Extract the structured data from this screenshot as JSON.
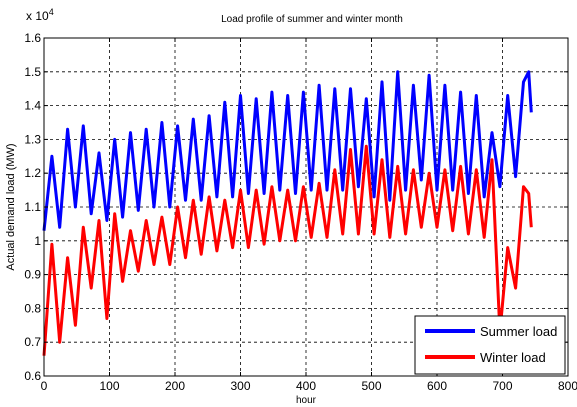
{
  "chart_data": {
    "type": "line",
    "title": "Load profile of summer and winter month",
    "xlabel": "hour",
    "ylabel": "Actual demand load (MW)",
    "y_exponent_label": "x 10",
    "y_exponent_power": "4",
    "xlim": [
      0,
      800
    ],
    "ylim": [
      0.6,
      1.6
    ],
    "x_ticks": [
      0,
      100,
      200,
      300,
      400,
      500,
      600,
      700,
      800
    ],
    "x_tick_labels": [
      "0",
      "100",
      "200",
      "300",
      "400",
      "500",
      "600",
      "700",
      "800"
    ],
    "y_ticks": [
      0.6,
      0.7,
      0.8,
      0.9,
      1.0,
      1.1,
      1.2,
      1.3,
      1.4,
      1.5,
      1.6
    ],
    "y_tick_labels": [
      "0.6",
      "0.7",
      "0.8",
      "0.9",
      "1",
      "1.1",
      "1.2",
      "1.3",
      "1.4",
      "1.5",
      "1.6"
    ],
    "grid": true,
    "legend_position": "bottom-right",
    "series": [
      {
        "name": "Summer load",
        "color": "#0000ff",
        "daily_trough": [
          [
            0,
            1.03
          ],
          [
            24,
            1.04
          ],
          [
            48,
            1.1
          ],
          [
            72,
            1.08
          ],
          [
            96,
            1.06
          ],
          [
            120,
            1.07
          ],
          [
            144,
            1.09
          ],
          [
            168,
            1.1
          ],
          [
            192,
            1.1
          ],
          [
            216,
            1.12
          ],
          [
            240,
            1.12
          ],
          [
            264,
            1.13
          ],
          [
            288,
            1.13
          ],
          [
            312,
            1.14
          ],
          [
            336,
            1.14
          ],
          [
            360,
            1.15
          ],
          [
            384,
            1.14
          ],
          [
            408,
            1.15
          ],
          [
            432,
            1.15
          ],
          [
            456,
            1.15
          ],
          [
            480,
            1.16
          ],
          [
            504,
            1.13
          ],
          [
            528,
            1.12
          ],
          [
            552,
            1.15
          ],
          [
            576,
            1.18
          ],
          [
            600,
            1.15
          ],
          [
            624,
            1.15
          ],
          [
            648,
            1.14
          ],
          [
            672,
            1.13
          ],
          [
            696,
            1.16
          ],
          [
            720,
            1.19
          ],
          [
            744,
            1.38
          ]
        ],
        "daily_peak": [
          [
            12,
            1.25
          ],
          [
            36,
            1.33
          ],
          [
            60,
            1.34
          ],
          [
            84,
            1.26
          ],
          [
            108,
            1.3
          ],
          [
            132,
            1.32
          ],
          [
            156,
            1.33
          ],
          [
            180,
            1.35
          ],
          [
            204,
            1.34
          ],
          [
            228,
            1.36
          ],
          [
            252,
            1.37
          ],
          [
            276,
            1.41
          ],
          [
            300,
            1.43
          ],
          [
            324,
            1.42
          ],
          [
            348,
            1.44
          ],
          [
            372,
            1.43
          ],
          [
            396,
            1.44
          ],
          [
            420,
            1.46
          ],
          [
            444,
            1.45
          ],
          [
            468,
            1.45
          ],
          [
            492,
            1.42
          ],
          [
            516,
            1.47
          ],
          [
            540,
            1.5
          ],
          [
            564,
            1.46
          ],
          [
            588,
            1.49
          ],
          [
            612,
            1.46
          ],
          [
            636,
            1.44
          ],
          [
            660,
            1.43
          ],
          [
            684,
            1.32
          ],
          [
            708,
            1.43
          ],
          [
            732,
            1.47
          ],
          [
            740,
            1.5
          ]
        ]
      },
      {
        "name": "Winter load",
        "color": "#ff0000",
        "daily_trough": [
          [
            0,
            0.66
          ],
          [
            24,
            0.7
          ],
          [
            48,
            0.75
          ],
          [
            72,
            0.86
          ],
          [
            96,
            0.77
          ],
          [
            120,
            0.88
          ],
          [
            144,
            0.91
          ],
          [
            168,
            0.93
          ],
          [
            192,
            0.93
          ],
          [
            216,
            0.95
          ],
          [
            240,
            0.96
          ],
          [
            264,
            0.97
          ],
          [
            288,
            0.98
          ],
          [
            312,
            0.98
          ],
          [
            336,
            0.99
          ],
          [
            360,
            1.0
          ],
          [
            384,
            1.0
          ],
          [
            408,
            1.01
          ],
          [
            432,
            1.01
          ],
          [
            456,
            1.02
          ],
          [
            480,
            1.02
          ],
          [
            504,
            1.02
          ],
          [
            528,
            1.01
          ],
          [
            552,
            1.02
          ],
          [
            576,
            1.04
          ],
          [
            600,
            1.04
          ],
          [
            624,
            1.03
          ],
          [
            648,
            1.02
          ],
          [
            672,
            1.01
          ],
          [
            696,
            0.73
          ],
          [
            720,
            0.86
          ],
          [
            744,
            1.04
          ]
        ],
        "daily_peak": [
          [
            12,
            0.99
          ],
          [
            36,
            0.95
          ],
          [
            60,
            1.04
          ],
          [
            84,
            1.06
          ],
          [
            108,
            1.08
          ],
          [
            132,
            1.03
          ],
          [
            156,
            1.06
          ],
          [
            180,
            1.07
          ],
          [
            204,
            1.1
          ],
          [
            228,
            1.12
          ],
          [
            252,
            1.13
          ],
          [
            276,
            1.12
          ],
          [
            300,
            1.15
          ],
          [
            324,
            1.15
          ],
          [
            348,
            1.16
          ],
          [
            372,
            1.15
          ],
          [
            396,
            1.16
          ],
          [
            420,
            1.17
          ],
          [
            444,
            1.21
          ],
          [
            468,
            1.27
          ],
          [
            492,
            1.28
          ],
          [
            516,
            1.24
          ],
          [
            540,
            1.22
          ],
          [
            564,
            1.21
          ],
          [
            588,
            1.2
          ],
          [
            612,
            1.21
          ],
          [
            636,
            1.22
          ],
          [
            660,
            1.21
          ],
          [
            684,
            1.24
          ],
          [
            708,
            0.98
          ],
          [
            732,
            1.16
          ],
          [
            740,
            1.14
          ]
        ]
      }
    ]
  }
}
